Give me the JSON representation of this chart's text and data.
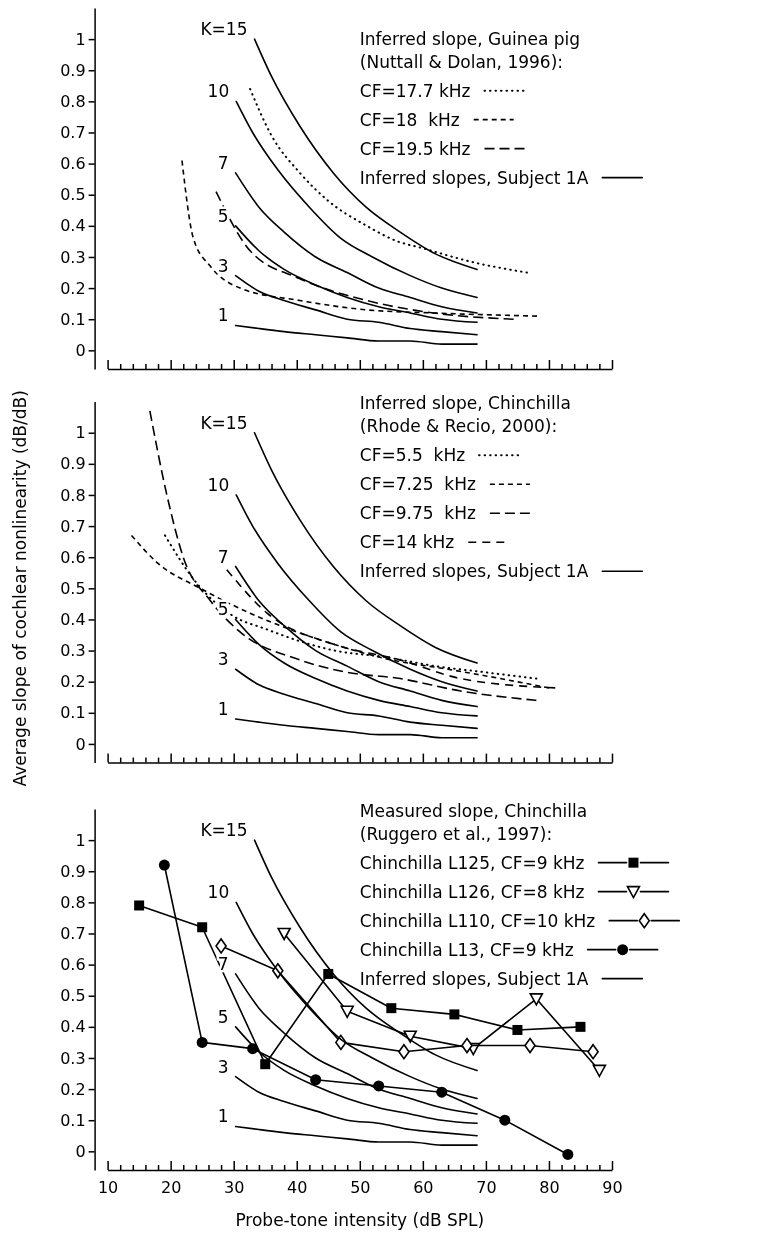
{
  "chart_data": [
    {
      "type": "line",
      "legend_title": "Inferred slope, Guinea pig\n(Nuttall & Dolan, 1996):",
      "legend": "top right",
      "tick_labels": "y",
      "xlim": [
        10,
        90
      ],
      "ylim": [
        -0.06,
        1.1
      ],
      "xticks": [
        10,
        {
          "value": 12,
          "label": null
        },
        {
          "value": 14,
          "label": null
        },
        {
          "value": 16,
          "label": null
        },
        {
          "value": 18,
          "label": null
        },
        20,
        {
          "value": 22,
          "label": null
        },
        {
          "value": 24,
          "label": null
        },
        {
          "value": 26,
          "label": null
        },
        {
          "value": 28,
          "label": null
        },
        30,
        {
          "value": 32,
          "label": null
        },
        {
          "value": 34,
          "label": null
        },
        {
          "value": 36,
          "label": null
        },
        {
          "value": 38,
          "label": null
        },
        40,
        {
          "value": 42,
          "label": null
        },
        {
          "value": 44,
          "label": null
        },
        {
          "value": 46,
          "label": null
        },
        {
          "value": 48,
          "label": null
        },
        50,
        {
          "value": 52,
          "label": null
        },
        {
          "value": 54,
          "label": null
        },
        {
          "value": 56,
          "label": null
        },
        {
          "value": 58,
          "label": null
        },
        60,
        {
          "value": 62,
          "label": null
        },
        {
          "value": 64,
          "label": null
        },
        {
          "value": 66,
          "label": null
        },
        {
          "value": 68,
          "label": null
        },
        70,
        {
          "value": 72,
          "label": null
        },
        {
          "value": 74,
          "label": null
        },
        {
          "value": 76,
          "label": null
        },
        {
          "value": 78,
          "label": null
        },
        80,
        {
          "value": 82,
          "label": null
        },
        {
          "value": 84,
          "label": null
        },
        {
          "value": 86,
          "label": null
        },
        {
          "value": 88,
          "label": null
        },
        90
      ],
      "yticks": [
        0,
        0.1,
        0.2,
        0.3,
        0.4,
        0.5,
        0.6,
        0.7,
        0.8,
        0.9,
        1
      ],
      "series": [
        {
          "name": "CF=17.7 kHz",
          "color": "#000000",
          "line_style": "dotted",
          "x": [
            32.6,
            36,
            40.5,
            45,
            51.1,
            56,
            59.6,
            68.6,
            76.5
          ],
          "values": [
            0.84,
            0.69,
            0.57,
            0.48,
            0.4,
            0.35,
            0.33,
            0.28,
            0.25
          ]
        },
        {
          "name": "CF=18  kHz",
          "color": "#000000",
          "line_style": "dashed",
          "x": [
            21.8,
            23.6,
            26.3,
            31,
            40.5,
            51.1,
            61.7,
            78.1
          ],
          "values": [
            0.61,
            0.36,
            0.27,
            0.2,
            0.16,
            0.13,
            0.12,
            0.11
          ]
        },
        {
          "name": "CF=19.5 kHz",
          "color": "#000000",
          "line_style": "dashed",
          "x": [
            27.2,
            32.6,
            40.5,
            51.1,
            61.7,
            74.4
          ],
          "values": [
            0.51,
            0.32,
            0.23,
            0.16,
            0.12,
            0.1
          ]
        },
        {
          "name": "Inferred slopes, Subject 1A",
          "color": "#000000",
          "line_style": "solid",
          "x": [
            33.3,
            36,
            40.5,
            45.8,
            51,
            56.4,
            62,
            68.6
          ],
          "values": [
            1.0,
            0.88,
            0.72,
            0.57,
            0.46,
            0.38,
            0.31,
            0.26
          ]
        },
        {
          "color": "#000000",
          "line_style": "solid",
          "x": [
            30.4,
            33,
            37,
            42,
            47,
            52,
            58,
            63,
            68.6
          ],
          "values": [
            0.8,
            0.7,
            0.58,
            0.46,
            0.36,
            0.3,
            0.24,
            0.2,
            0.17
          ]
        },
        {
          "color": "#000000",
          "line_style": "solid",
          "x": [
            30.3,
            34,
            38,
            43,
            48,
            53,
            58,
            63,
            68.6
          ],
          "values": [
            0.57,
            0.46,
            0.38,
            0.3,
            0.25,
            0.2,
            0.17,
            0.14,
            0.12
          ]
        },
        {
          "color": "#000000",
          "line_style": "solid",
          "x": [
            30.3,
            34,
            38,
            43,
            48,
            53,
            58,
            63,
            68.6
          ],
          "values": [
            0.4,
            0.32,
            0.26,
            0.21,
            0.17,
            0.14,
            0.12,
            0.1,
            0.09
          ]
        },
        {
          "color": "#000000",
          "line_style": "solid",
          "x": [
            30.3,
            34,
            38,
            43,
            48,
            53,
            58,
            63,
            68.6
          ],
          "values": [
            0.24,
            0.19,
            0.16,
            0.13,
            0.1,
            0.09,
            0.07,
            0.06,
            0.05
          ]
        },
        {
          "color": "#000000",
          "line_style": "solid",
          "x": [
            30.3,
            34,
            38,
            43,
            48,
            53,
            58,
            63,
            68.6
          ],
          "values": [
            0.08,
            0.07,
            0.06,
            0.05,
            0.04,
            0.03,
            0.03,
            0.02,
            0.02
          ]
        }
      ],
      "annotations": [
        {
          "text": "K=15",
          "x": 33.3,
          "y": 1.0
        },
        {
          "text": "10",
          "x": 30.4,
          "y": 0.8
        },
        {
          "text": "7",
          "x": 30.3,
          "y": 0.57
        },
        {
          "text": "5",
          "x": 30.3,
          "y": 0.4
        },
        {
          "text": "3",
          "x": 30.3,
          "y": 0.24
        },
        {
          "text": "1",
          "x": 30.3,
          "y": 0.08
        }
      ]
    },
    {
      "type": "line",
      "ylabel": "Average slope of cochlear nonlinearity (dB/dB)",
      "legend_title": "Inferred slope, Chinchilla\n(Rhode & Recio, 2000):",
      "legend": "top right",
      "tick_labels": "y",
      "xlim": [
        10,
        90
      ],
      "ylim": [
        -0.06,
        1.1
      ],
      "xticks": [
        10,
        {
          "value": 12,
          "label": null
        },
        {
          "value": 14,
          "label": null
        },
        {
          "value": 16,
          "label": null
        },
        {
          "value": 18,
          "label": null
        },
        20,
        {
          "value": 22,
          "label": null
        },
        {
          "value": 24,
          "label": null
        },
        {
          "value": 26,
          "label": null
        },
        {
          "value": 28,
          "label": null
        },
        30,
        {
          "value": 32,
          "label": null
        },
        {
          "value": 34,
          "label": null
        },
        {
          "value": 36,
          "label": null
        },
        {
          "value": 38,
          "label": null
        },
        40,
        {
          "value": 42,
          "label": null
        },
        {
          "value": 44,
          "label": null
        },
        {
          "value": 46,
          "label": null
        },
        {
          "value": 48,
          "label": null
        },
        50,
        {
          "value": 52,
          "label": null
        },
        {
          "value": 54,
          "label": null
        },
        {
          "value": 56,
          "label": null
        },
        {
          "value": 58,
          "label": null
        },
        60,
        {
          "value": 62,
          "label": null
        },
        {
          "value": 64,
          "label": null
        },
        {
          "value": 66,
          "label": null
        },
        {
          "value": 68,
          "label": null
        },
        70,
        {
          "value": 72,
          "label": null
        },
        {
          "value": 74,
          "label": null
        },
        {
          "value": 76,
          "label": null
        },
        {
          "value": 78,
          "label": null
        },
        80,
        {
          "value": 82,
          "label": null
        },
        {
          "value": 84,
          "label": null
        },
        {
          "value": 86,
          "label": null
        },
        {
          "value": 88,
          "label": null
        },
        90
      ],
      "yticks": [
        0,
        0.1,
        0.2,
        0.3,
        0.4,
        0.5,
        0.6,
        0.7,
        0.8,
        0.9,
        1
      ],
      "series": [
        {
          "name": "CF=5.5  kHz",
          "color": "#000000",
          "line_style": "dotted",
          "x": [
            19.1,
            24,
            30,
            35,
            40.5,
            46,
            53.7,
            62,
            70,
            78
          ],
          "values": [
            0.67,
            0.52,
            0.41,
            0.37,
            0.33,
            0.3,
            0.28,
            0.25,
            0.23,
            0.21
          ]
        },
        {
          "name": "CF=7.25  kHz",
          "color": "#000000",
          "line_style": "dashed",
          "x": [
            13.8,
            18,
            24.7,
            32.6,
            40,
            45.9,
            55,
            64,
            72.3,
            80
          ],
          "values": [
            0.67,
            0.58,
            0.5,
            0.42,
            0.36,
            0.32,
            0.27,
            0.24,
            0.21,
            0.18
          ]
        },
        {
          "name": "CF=9.75  kHz",
          "color": "#000000",
          "line_style": "dashed",
          "x": [
            16.7,
            19.4,
            22,
            26.3,
            31,
            40.5,
            48,
            56.4,
            66,
            78
          ],
          "values": [
            1.07,
            0.8,
            0.6,
            0.46,
            0.36,
            0.27,
            0.23,
            0.21,
            0.17,
            0.14
          ]
        },
        {
          "name": "CF=14 kHz",
          "color": "#000000",
          "line_style": "dashed",
          "x": [
            28.9,
            35.3,
            45.9,
            56.4,
            66,
            81
          ],
          "values": [
            0.56,
            0.42,
            0.32,
            0.27,
            0.21,
            0.18
          ]
        },
        {
          "name": "Inferred slopes, Subject 1A",
          "color": "#000000",
          "line_style": "solid",
          "x": [
            33.3,
            36,
            40.5,
            45.8,
            51,
            56.4,
            62,
            68.6
          ],
          "values": [
            1.0,
            0.88,
            0.72,
            0.57,
            0.46,
            0.38,
            0.31,
            0.26
          ]
        },
        {
          "color": "#000000",
          "line_style": "solid",
          "x": [
            30.4,
            33,
            37,
            42,
            47,
            52,
            58,
            63,
            68.6
          ],
          "values": [
            0.8,
            0.7,
            0.58,
            0.46,
            0.36,
            0.3,
            0.24,
            0.2,
            0.17
          ]
        },
        {
          "color": "#000000",
          "line_style": "solid",
          "x": [
            30.3,
            34,
            38,
            43,
            48,
            53,
            58,
            63,
            68.6
          ],
          "values": [
            0.57,
            0.46,
            0.38,
            0.3,
            0.25,
            0.2,
            0.17,
            0.14,
            0.12
          ]
        },
        {
          "color": "#000000",
          "line_style": "solid",
          "x": [
            30.3,
            34,
            38,
            43,
            48,
            53,
            58,
            63,
            68.6
          ],
          "values": [
            0.4,
            0.32,
            0.26,
            0.21,
            0.17,
            0.14,
            0.12,
            0.1,
            0.09
          ]
        },
        {
          "color": "#000000",
          "line_style": "solid",
          "x": [
            30.3,
            34,
            38,
            43,
            48,
            53,
            58,
            63,
            68.6
          ],
          "values": [
            0.24,
            0.19,
            0.16,
            0.13,
            0.1,
            0.09,
            0.07,
            0.06,
            0.05
          ]
        },
        {
          "color": "#000000",
          "line_style": "solid",
          "x": [
            30.3,
            34,
            38,
            43,
            48,
            53,
            58,
            63,
            68.6
          ],
          "values": [
            0.08,
            0.07,
            0.06,
            0.05,
            0.04,
            0.03,
            0.03,
            0.02,
            0.02
          ]
        }
      ],
      "annotations": [
        {
          "text": "K=15",
          "x": 33.3,
          "y": 1.0
        },
        {
          "text": "10",
          "x": 30.4,
          "y": 0.8
        },
        {
          "text": "7",
          "x": 30.3,
          "y": 0.57
        },
        {
          "text": "5",
          "x": 30.3,
          "y": 0.4
        },
        {
          "text": "3",
          "x": 30.3,
          "y": 0.24
        },
        {
          "text": "1",
          "x": 30.3,
          "y": 0.08
        }
      ]
    },
    {
      "type": "line",
      "xlabel": "Probe-tone intensity (dB SPL)",
      "legend_title": "Measured slope, Chinchilla\n(Ruggero et al., 1997):",
      "legend": "top right",
      "xlim": [
        10,
        90
      ],
      "ylim": [
        -0.06,
        1.1
      ],
      "xticks": [
        10,
        {
          "value": 12,
          "label": null
        },
        {
          "value": 14,
          "label": null
        },
        {
          "value": 16,
          "label": null
        },
        {
          "value": 18,
          "label": null
        },
        20,
        {
          "value": 22,
          "label": null
        },
        {
          "value": 24,
          "label": null
        },
        {
          "value": 26,
          "label": null
        },
        {
          "value": 28,
          "label": null
        },
        30,
        {
          "value": 32,
          "label": null
        },
        {
          "value": 34,
          "label": null
        },
        {
          "value": 36,
          "label": null
        },
        {
          "value": 38,
          "label": null
        },
        40,
        {
          "value": 42,
          "label": null
        },
        {
          "value": 44,
          "label": null
        },
        {
          "value": 46,
          "label": null
        },
        {
          "value": 48,
          "label": null
        },
        50,
        {
          "value": 52,
          "label": null
        },
        {
          "value": 54,
          "label": null
        },
        {
          "value": 56,
          "label": null
        },
        {
          "value": 58,
          "label": null
        },
        60,
        {
          "value": 62,
          "label": null
        },
        {
          "value": 64,
          "label": null
        },
        {
          "value": 66,
          "label": null
        },
        {
          "value": 68,
          "label": null
        },
        70,
        {
          "value": 72,
          "label": null
        },
        {
          "value": 74,
          "label": null
        },
        {
          "value": 76,
          "label": null
        },
        {
          "value": 78,
          "label": null
        },
        80,
        {
          "value": 82,
          "label": null
        },
        {
          "value": 84,
          "label": null
        },
        {
          "value": 86,
          "label": null
        },
        {
          "value": 88,
          "label": null
        },
        90
      ],
      "yticks": [
        0,
        0.1,
        0.2,
        0.3,
        0.4,
        0.5,
        0.6,
        0.7,
        0.8,
        0.9,
        1
      ],
      "series": [
        {
          "name": "Chinchilla L125, CF=9 kHz",
          "color": "#000000",
          "line_style": "solid",
          "marker": "square",
          "x": [
            15,
            25,
            35,
            45,
            55,
            65,
            75,
            85
          ],
          "values": [
            0.79,
            0.72,
            0.28,
            0.57,
            0.46,
            0.44,
            0.39,
            0.4
          ]
        },
        {
          "name": "Chinchilla L126, CF=8 kHz",
          "color": "#000000",
          "line_style": "solid",
          "marker": "triangle",
          "x": [
            38,
            48,
            58,
            68,
            78,
            88
          ],
          "values": [
            0.7,
            0.45,
            0.37,
            0.33,
            0.49,
            0.26
          ]
        },
        {
          "name": "Chinchilla L110, CF=10 kHz",
          "color": "#000000",
          "line_style": "solid",
          "marker": "diamond",
          "x": [
            28,
            37,
            47,
            57,
            67,
            77,
            87
          ],
          "values": [
            0.66,
            0.58,
            0.35,
            0.32,
            0.34,
            0.34,
            0.32
          ]
        },
        {
          "name": "Chinchilla L13, CF=9 kHz",
          "color": "#000000",
          "line_style": "solid",
          "marker": "circle",
          "x": [
            19,
            25,
            33,
            43,
            53,
            63,
            73,
            83
          ],
          "values": [
            0.92,
            0.35,
            0.33,
            0.23,
            0.21,
            0.19,
            0.1,
            -0.01
          ]
        },
        {
          "name": "Inferred slopes, Subject 1A",
          "color": "#000000",
          "line_style": "solid",
          "x": [
            33.3,
            36,
            40.5,
            45.8,
            51,
            56.4,
            62,
            68.6
          ],
          "values": [
            1.0,
            0.88,
            0.72,
            0.57,
            0.46,
            0.38,
            0.31,
            0.26
          ]
        },
        {
          "color": "#000000",
          "line_style": "solid",
          "x": [
            30.4,
            33,
            37,
            42,
            47,
            52,
            58,
            63,
            68.6
          ],
          "values": [
            0.8,
            0.7,
            0.58,
            0.46,
            0.36,
            0.3,
            0.24,
            0.2,
            0.17
          ]
        },
        {
          "color": "#000000",
          "line_style": "solid",
          "x": [
            30.3,
            34,
            38,
            43,
            48,
            53,
            58,
            63,
            68.6
          ],
          "values": [
            0.57,
            0.46,
            0.38,
            0.3,
            0.25,
            0.2,
            0.17,
            0.14,
            0.12
          ]
        },
        {
          "color": "#000000",
          "line_style": "solid",
          "x": [
            30.3,
            34,
            38,
            43,
            48,
            53,
            58,
            63,
            68.6
          ],
          "values": [
            0.4,
            0.32,
            0.26,
            0.21,
            0.17,
            0.14,
            0.12,
            0.1,
            0.09
          ]
        },
        {
          "color": "#000000",
          "line_style": "solid",
          "x": [
            30.3,
            34,
            38,
            43,
            48,
            53,
            58,
            63,
            68.6
          ],
          "values": [
            0.24,
            0.19,
            0.16,
            0.13,
            0.1,
            0.09,
            0.07,
            0.06,
            0.05
          ]
        },
        {
          "color": "#000000",
          "line_style": "solid",
          "x": [
            30.3,
            34,
            38,
            43,
            48,
            53,
            58,
            63,
            68.6
          ],
          "values": [
            0.08,
            0.07,
            0.06,
            0.05,
            0.04,
            0.03,
            0.03,
            0.02,
            0.02
          ]
        }
      ],
      "annotations": [
        {
          "text": "K=15",
          "x": 33.3,
          "y": 1.0
        },
        {
          "text": "10",
          "x": 30.4,
          "y": 0.8
        },
        {
          "text": "7",
          "x": 30.3,
          "y": 0.57
        },
        {
          "text": "5",
          "x": 30.3,
          "y": 0.4
        },
        {
          "text": "3",
          "x": 30.3,
          "y": 0.24
        },
        {
          "text": "1",
          "x": 30.3,
          "y": 0.08
        }
      ]
    }
  ]
}
